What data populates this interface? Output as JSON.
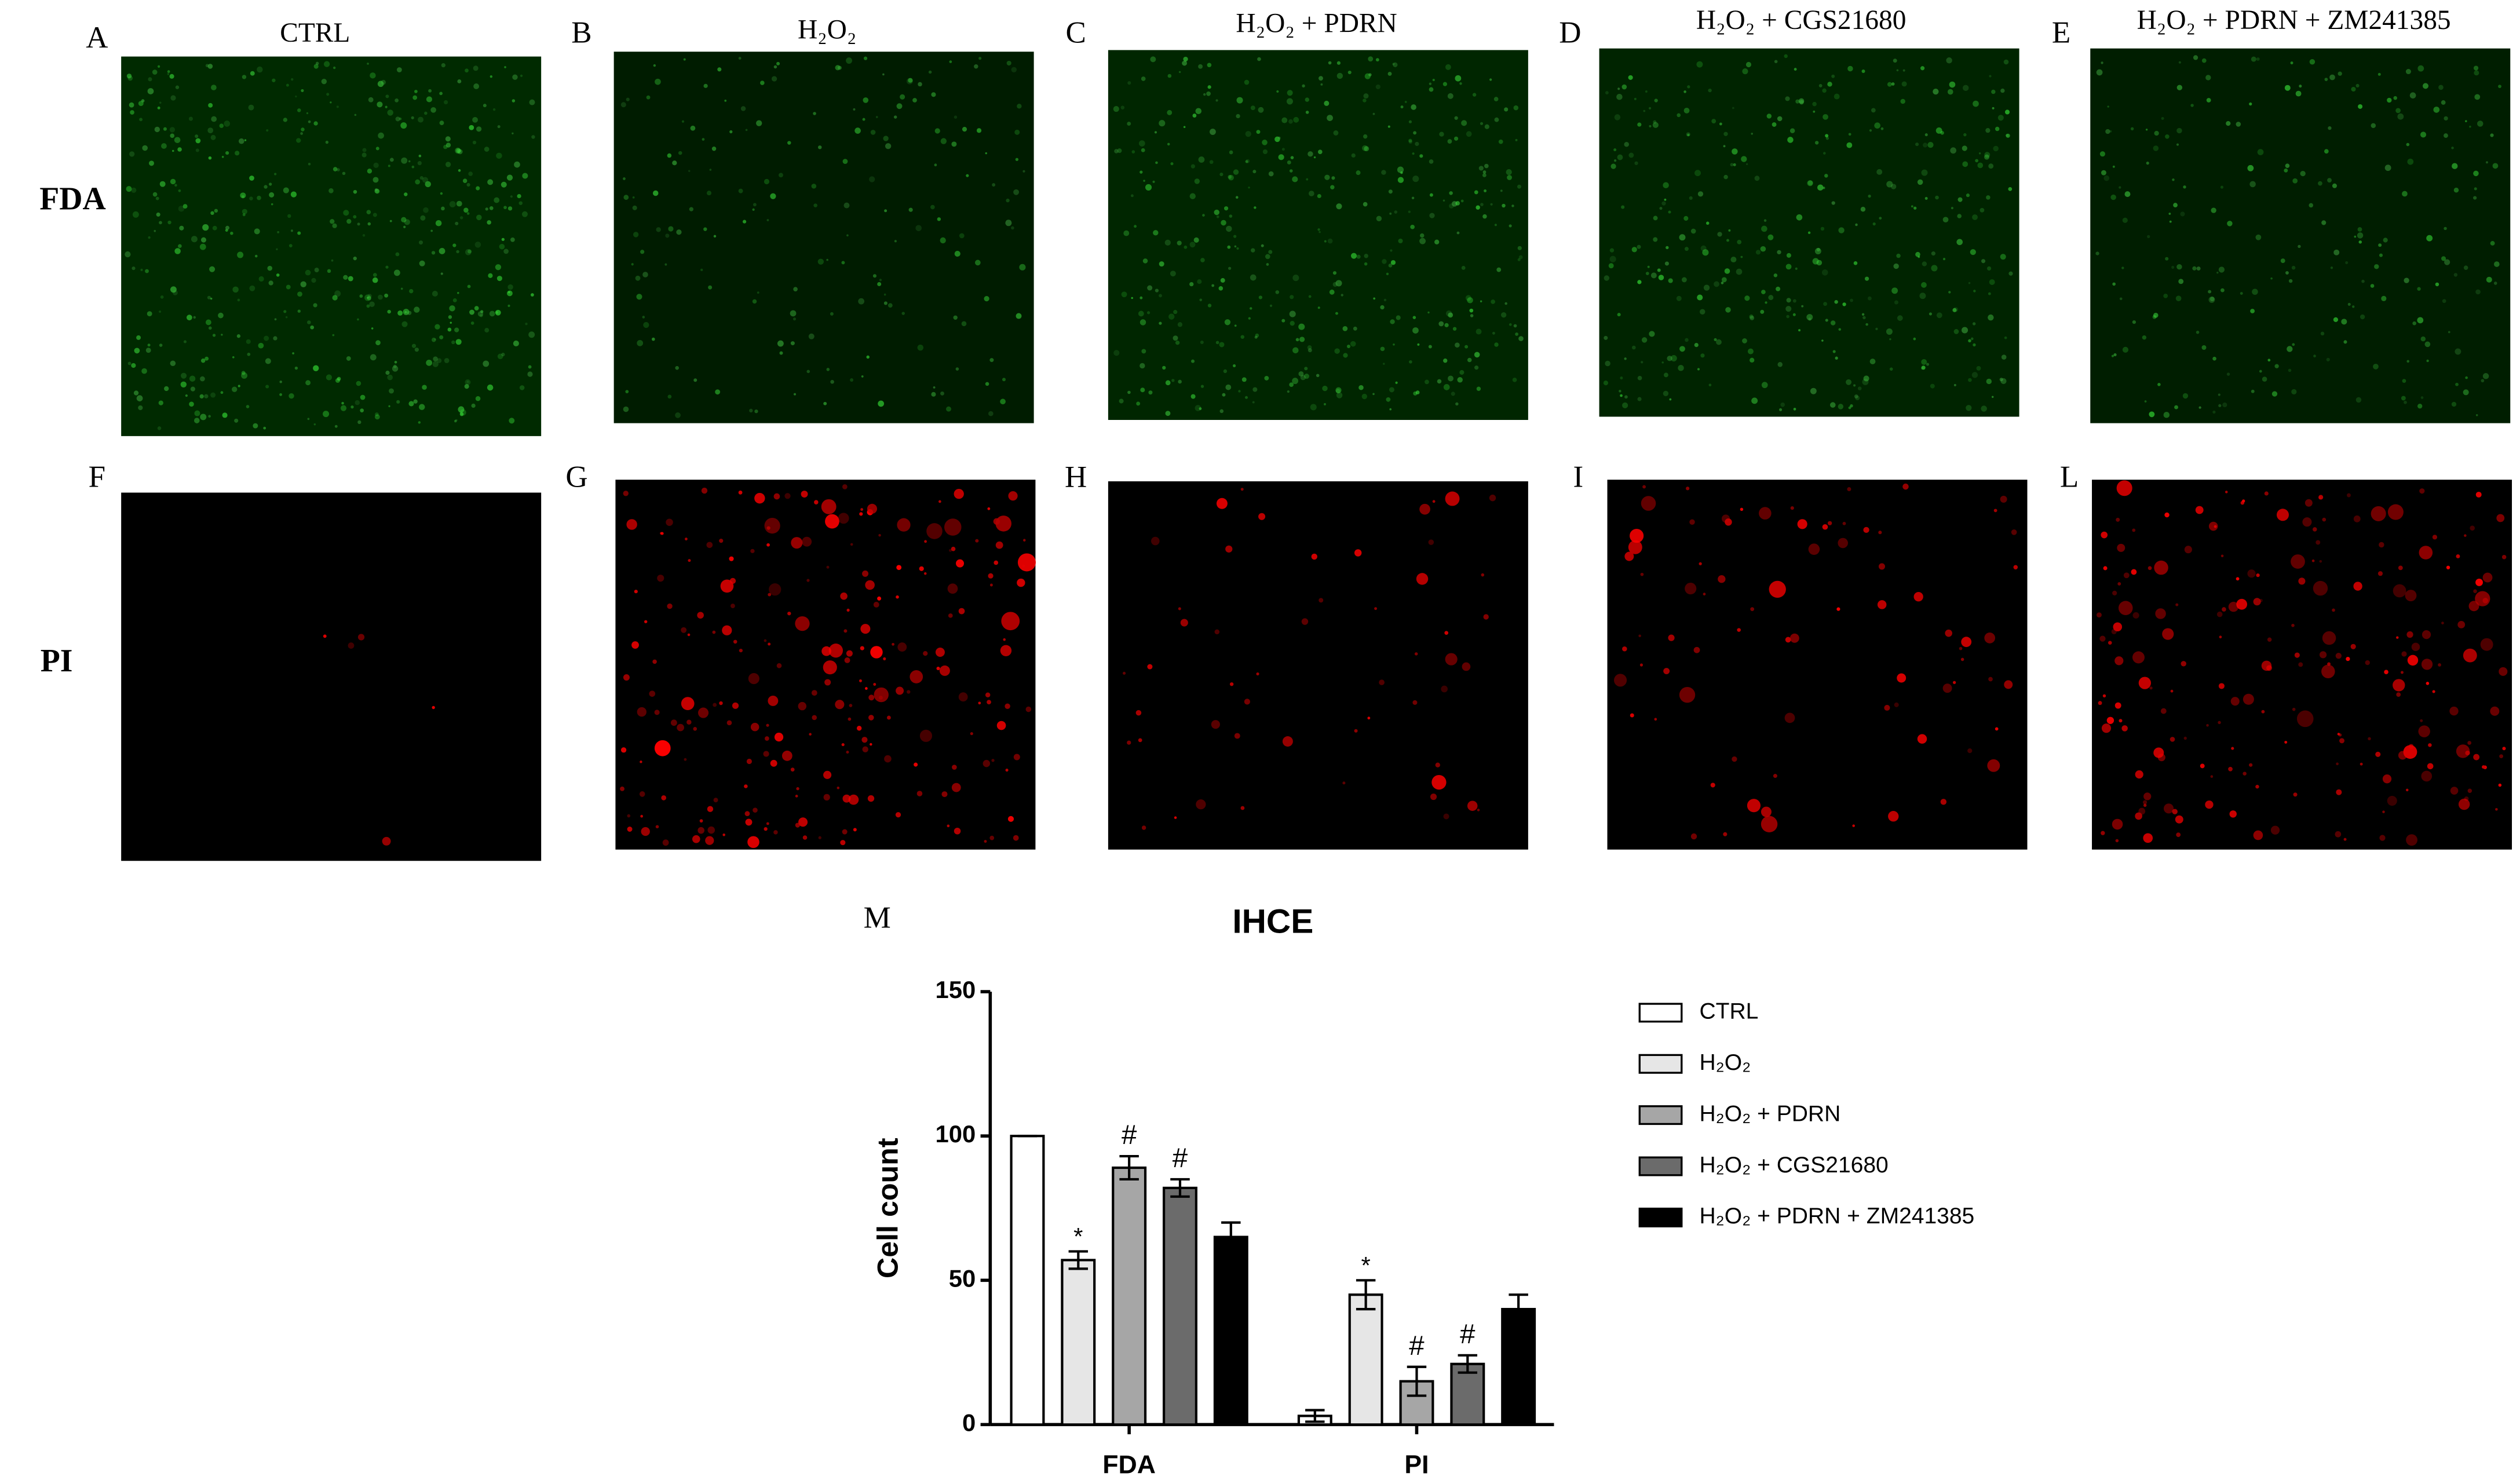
{
  "figure": {
    "rows": [
      "FDA",
      "PI"
    ],
    "columns": [
      {
        "title": "CTRL",
        "letters": [
          "A",
          "F"
        ]
      },
      {
        "title": "H₂O₂",
        "letters": [
          "B",
          "G"
        ]
      },
      {
        "title": "H₂O₂ + PDRN",
        "letters": [
          "C",
          "H"
        ]
      },
      {
        "title": "H₂O₂ + CGS21680",
        "letters": [
          "D",
          "I"
        ]
      },
      {
        "title": "H₂O₂ + PDRN + ZM241385",
        "letters": [
          "E",
          "L"
        ]
      }
    ]
  },
  "chart_data": {
    "type": "bar",
    "panel_letter": "M",
    "title": "IHCE",
    "y_label": "Cell count",
    "categories": [
      "FDA",
      "PI"
    ],
    "ylim": [
      0,
      150
    ],
    "yticks": [
      0,
      50,
      100,
      150
    ],
    "series": [
      {
        "name": "CTRL",
        "color": "#ffffff",
        "values": [
          100,
          3
        ],
        "errors": [
          0,
          2
        ],
        "markers": [
          null,
          null
        ]
      },
      {
        "name": "H₂O₂",
        "color": "#e6e6e6",
        "values": [
          57,
          45
        ],
        "errors": [
          3,
          5
        ],
        "markers": [
          "*",
          "*"
        ]
      },
      {
        "name": "H₂O₂ + PDRN",
        "color": "#a6a6a6",
        "values": [
          89,
          15
        ],
        "errors": [
          4,
          5
        ],
        "markers": [
          "#",
          "#"
        ]
      },
      {
        "name": "H₂O₂ + CGS21680",
        "color": "#6b6b6b",
        "values": [
          82,
          21
        ],
        "errors": [
          3,
          3
        ],
        "markers": [
          "#",
          "#"
        ]
      },
      {
        "name": "H₂O₂ + PDRN + ZM241385",
        "color": "#000000",
        "values": [
          65,
          40
        ],
        "errors": [
          5,
          5
        ],
        "markers": [
          null,
          null
        ]
      }
    ]
  }
}
